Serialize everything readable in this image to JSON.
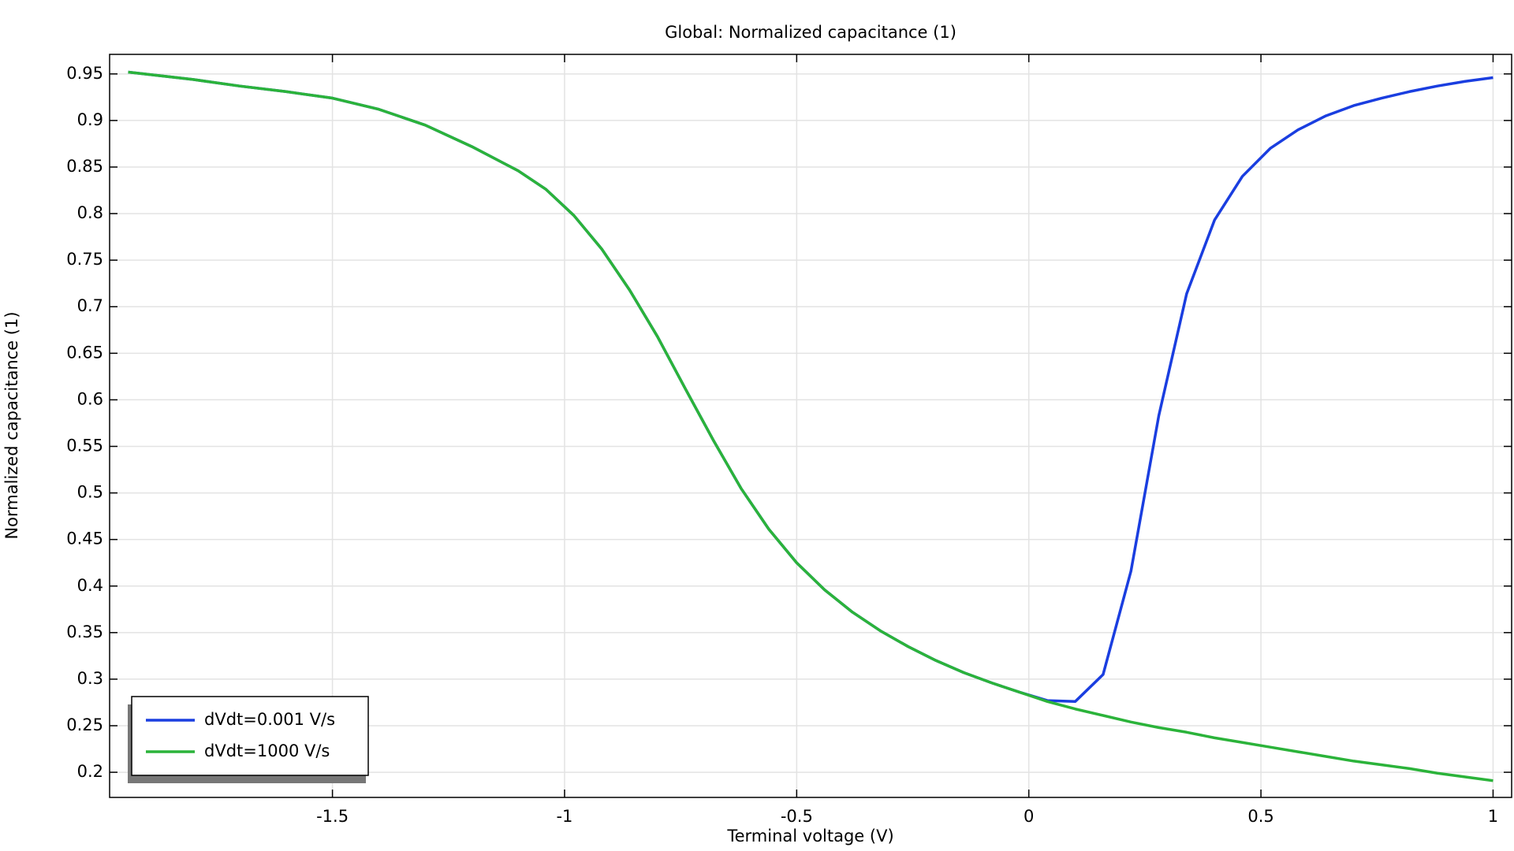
{
  "chart_data": {
    "type": "line",
    "title": "Global: Normalized capacitance (1)",
    "x_label": "Terminal voltage (V)",
    "y_label": "Normalized capacitance (1)",
    "x": [
      -1.94,
      -1.8,
      -1.7,
      -1.6,
      -1.5,
      -1.4,
      -1.3,
      -1.2,
      -1.1,
      -1.04,
      -0.98,
      -0.92,
      -0.86,
      -0.8,
      -0.74,
      -0.68,
      -0.62,
      -0.56,
      -0.5,
      -0.44,
      -0.38,
      -0.32,
      -0.26,
      -0.2,
      -0.14,
      -0.08,
      -0.02,
      0.04,
      0.1,
      0.16,
      0.22,
      0.28,
      0.34,
      0.4,
      0.46,
      0.52,
      0.58,
      0.64,
      0.7,
      0.76,
      0.82,
      0.88,
      0.94,
      1.0
    ],
    "series": [
      {
        "name": "dVdt=0.001 V/s",
        "color": "#1a3ee0",
        "values": [
          0.952,
          0.944,
          0.937,
          0.931,
          0.924,
          0.912,
          0.895,
          0.872,
          0.846,
          0.826,
          0.798,
          0.762,
          0.718,
          0.668,
          0.612,
          0.557,
          0.505,
          0.461,
          0.425,
          0.396,
          0.372,
          0.352,
          0.335,
          0.32,
          0.307,
          0.296,
          0.286,
          0.277,
          0.276,
          0.305,
          0.416,
          0.583,
          0.714,
          0.793,
          0.84,
          0.87,
          0.89,
          0.905,
          0.916,
          0.924,
          0.931,
          0.937,
          0.942,
          0.946
        ]
      },
      {
        "name": "dVdt=1000 V/s",
        "color": "#2bb33a",
        "values": [
          0.952,
          0.944,
          0.937,
          0.931,
          0.924,
          0.912,
          0.895,
          0.872,
          0.846,
          0.826,
          0.798,
          0.762,
          0.718,
          0.668,
          0.612,
          0.557,
          0.505,
          0.461,
          0.425,
          0.396,
          0.372,
          0.352,
          0.335,
          0.32,
          0.307,
          0.296,
          0.286,
          0.276,
          0.268,
          0.261,
          0.254,
          0.248,
          0.243,
          0.237,
          0.232,
          0.227,
          0.222,
          0.217,
          0.212,
          0.208,
          0.204,
          0.199,
          0.195,
          0.191
        ]
      }
    ],
    "xlim": [
      -1.98,
      1.04
    ],
    "ylim": [
      0.173,
      0.971
    ],
    "xticks": [
      -1.5,
      -1,
      -0.5,
      0,
      0.5,
      1
    ],
    "yticks": [
      0.2,
      0.25,
      0.3,
      0.35,
      0.4,
      0.45,
      0.5,
      0.55,
      0.6,
      0.65,
      0.7,
      0.75,
      0.8,
      0.85,
      0.9,
      0.95
    ],
    "grid": true,
    "legend": "lower left"
  }
}
